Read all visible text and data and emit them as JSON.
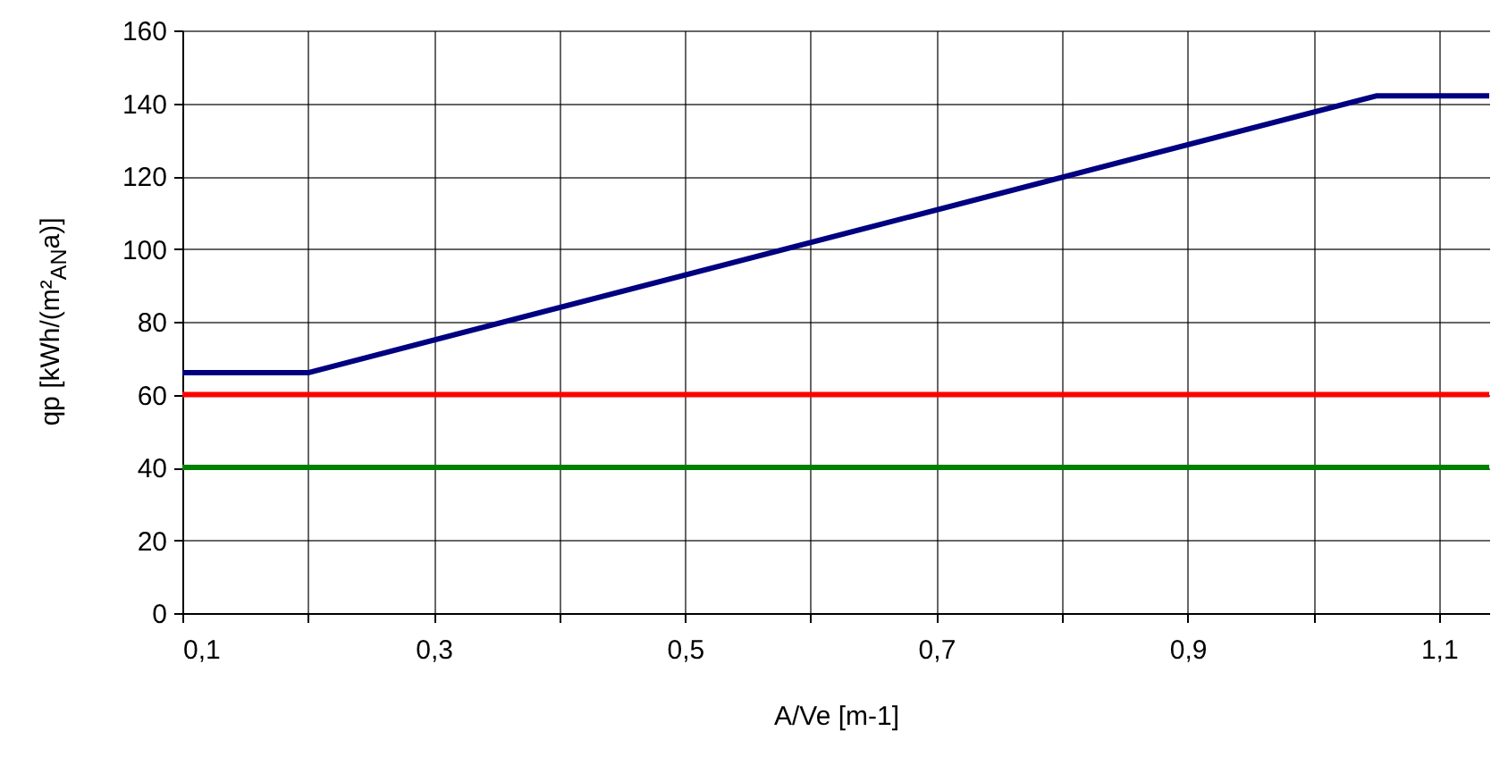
{
  "chart_data": {
    "type": "line",
    "xlabel": "A/Ve [m-1]",
    "ylabel": "qp [kWh/(m²$_{AN}$a)]",
    "xlim": [
      0.1,
      1.14
    ],
    "ylim": [
      0,
      160
    ],
    "xticks": [
      {
        "value": 0.1,
        "label": "0,1"
      },
      {
        "value": 0.2,
        "label": null
      },
      {
        "value": 0.3,
        "label": "0,3"
      },
      {
        "value": 0.4,
        "label": null
      },
      {
        "value": 0.5,
        "label": "0,5"
      },
      {
        "value": 0.6,
        "label": null
      },
      {
        "value": 0.7,
        "label": "0,7"
      },
      {
        "value": 0.8,
        "label": null
      },
      {
        "value": 0.9,
        "label": "0,9"
      },
      {
        "value": 1.0,
        "label": null
      },
      {
        "value": 1.1,
        "label": "1,1"
      }
    ],
    "yticks": [
      0,
      20,
      40,
      60,
      80,
      100,
      120,
      140,
      160
    ],
    "grid": true,
    "marker": "none",
    "line_style": "solid",
    "series": [
      {
        "color": "#000080",
        "x": [
          0.1,
          0.2,
          1.05,
          1.14
        ],
        "values": [
          66,
          66,
          142,
          142
        ]
      },
      {
        "color": "#ff0000",
        "x": [
          0.1,
          1.14
        ],
        "values": [
          60,
          60
        ]
      },
      {
        "color": "#008000",
        "x": [
          0.1,
          1.14
        ],
        "values": [
          40,
          40
        ]
      }
    ]
  }
}
